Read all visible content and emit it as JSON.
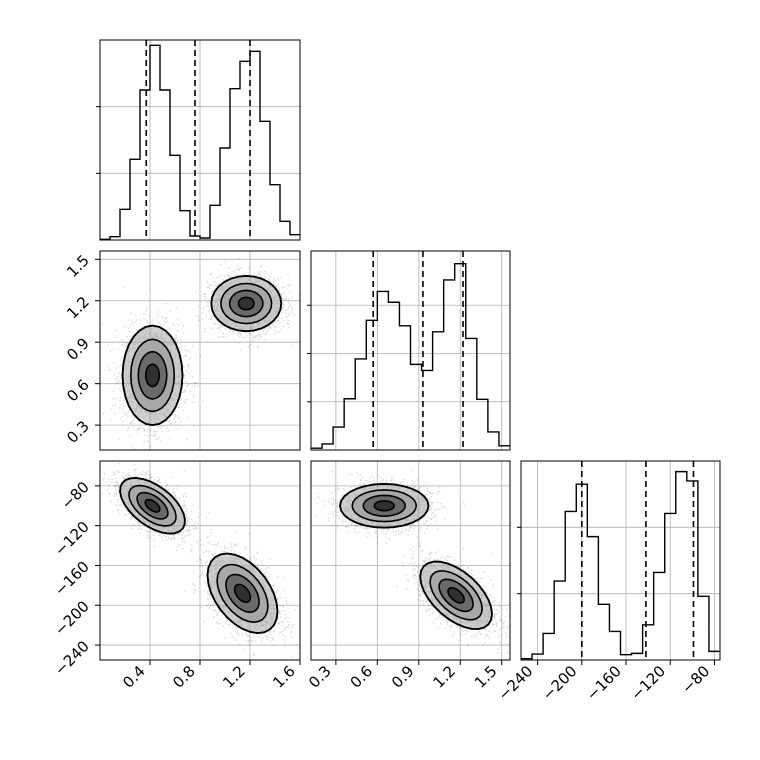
{
  "chart_data": {
    "type": "corner",
    "parameters": 3,
    "grid": true,
    "colors": {
      "line": "#000000",
      "grid": "#b0b0b0",
      "fill_dark": "#303030",
      "fill_mid": "#6a6a6a",
      "fill_light": "#a8a8a8"
    },
    "histograms": [
      {
        "param_index": 0,
        "bin_edges": [
          0.0,
          0.08,
          0.16,
          0.24,
          0.32,
          0.4,
          0.48,
          0.56,
          0.64,
          0.72,
          0.8,
          0.88,
          0.96,
          1.04,
          1.12,
          1.2,
          1.28,
          1.36,
          1.44,
          1.52,
          1.6
        ],
        "counts": [
          0.1,
          0.5,
          4.6,
          12.1,
          22.5,
          29.2,
          22.5,
          12.7,
          4.4,
          0.6,
          0.3,
          5.2,
          13.8,
          22.7,
          26.8,
          28.3,
          17.8,
          8.3,
          2.8,
          0.8
        ],
        "ylim": [
          0,
          30
        ],
        "yticks": [
          10,
          20
        ],
        "quantiles": [
          0.37,
          0.76,
          1.2
        ]
      },
      {
        "param_index": 1,
        "bin_edges": [
          0.12,
          0.2,
          0.28,
          0.36,
          0.44,
          0.52,
          0.6,
          0.68,
          0.76,
          0.84,
          0.92,
          1.0,
          1.08,
          1.16,
          1.24,
          1.32,
          1.4,
          1.48,
          1.56
        ],
        "counts": [
          0.3,
          1.0,
          3.8,
          8.5,
          15.1,
          21.5,
          26.3,
          24.5,
          20.6,
          14.2,
          13.2,
          19.6,
          28.2,
          30.9,
          18.5,
          8.4,
          3.0,
          0.7
        ],
        "xlim": [
          0.12,
          1.56
        ],
        "ylim": [
          0,
          33
        ],
        "yticks": [
          8,
          16,
          24
        ],
        "quantiles": [
          0.57,
          0.93,
          1.22
        ]
      },
      {
        "param_index": 2,
        "bin_edges": [
          -255,
          -245,
          -235,
          -225,
          -215,
          -205,
          -195,
          -185,
          -175,
          -165,
          -155,
          -145,
          -135,
          -125,
          -115,
          -105,
          -95,
          -85,
          -75
        ],
        "counts": [
          0.2,
          0.9,
          4.0,
          11.9,
          22.4,
          26.5,
          18.6,
          8.4,
          4.3,
          0.8,
          1.0,
          5.3,
          13.2,
          22.1,
          28.4,
          27.0,
          9.6,
          1.3
        ],
        "xlim": [
          -255,
          -75
        ],
        "ylim": [
          0,
          30
        ],
        "yticks": [
          10,
          20
        ],
        "quantiles": [
          -200,
          -142,
          -99
        ]
      }
    ],
    "scatter_panels": [
      {
        "x_index": 0,
        "y_index": 1,
        "xlim": [
          0.0,
          1.6
        ],
        "ylim": [
          0.12,
          1.56
        ],
        "clusters": [
          {
            "cx": 0.42,
            "cy": 0.66,
            "sx": 0.12,
            "sy": 0.18,
            "n": 5000
          },
          {
            "cx": 1.17,
            "cy": 1.18,
            "sx": 0.14,
            "sy": 0.1,
            "n": 5000
          }
        ]
      },
      {
        "x_index": 0,
        "y_index": 2,
        "xlim": [
          0.0,
          1.6
        ],
        "ylim": [
          -255,
          -55
        ],
        "clusters": [
          {
            "cx": 0.42,
            "cy": -100,
            "sx": 0.13,
            "sy": 14,
            "rho": -0.55,
            "n": 5000
          },
          {
            "cx": 1.14,
            "cy": -188,
            "sx": 0.14,
            "sy": 20,
            "rho": -0.45,
            "n": 5000
          }
        ]
      },
      {
        "x_index": 1,
        "y_index": 2,
        "xlim": [
          0.12,
          1.56
        ],
        "ylim": [
          -255,
          -55
        ],
        "clusters": [
          {
            "cx": 0.65,
            "cy": -100,
            "sx": 0.16,
            "sy": 11,
            "n": 5000
          },
          {
            "cx": 1.17,
            "cy": -190,
            "sx": 0.13,
            "sy": 17,
            "rho": -0.55,
            "n": 5000
          }
        ]
      }
    ],
    "axes": {
      "param0_ticks": [
        "0.4",
        "0.8",
        "1.2",
        "1.6"
      ],
      "param1_ticks": [
        "0.3",
        "0.6",
        "0.9",
        "1.2",
        "1.5"
      ],
      "param2_ticks": [
        "−240",
        "−200",
        "−160",
        "−120",
        "−80"
      ]
    }
  }
}
